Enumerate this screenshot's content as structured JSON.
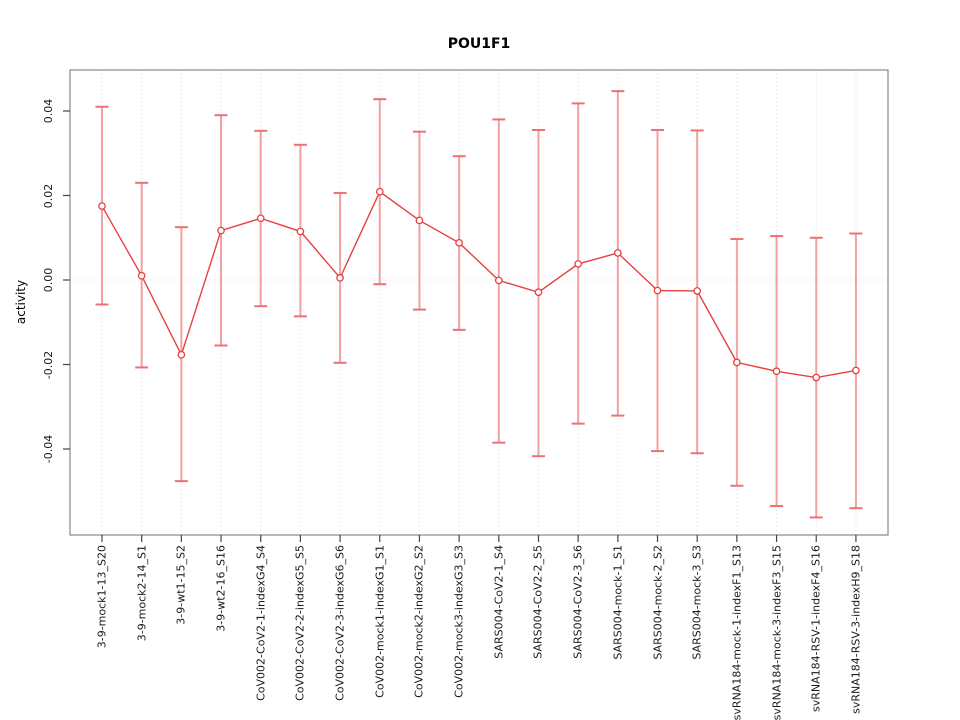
{
  "title": "POU1F1",
  "chart_data": {
    "type": "line",
    "subtype": "points-with-error-bars",
    "title": "POU1F1",
    "xlabel": "",
    "ylabel": "activity",
    "ylim": [
      -0.06,
      0.05
    ],
    "yticks": {
      "values": [
        0.04,
        0.02,
        0,
        -0.02,
        -0.04
      ],
      "labels": [
        "0.04",
        "0.02",
        "0.00",
        "-0.02",
        "-0.04"
      ]
    },
    "grid": {
      "vertical_dotted_at_each_category": true,
      "horizontal_dotted_at_zero": true
    },
    "legend_position": "none",
    "marker": "open-circle",
    "colors": {
      "series": "#e74040",
      "errorbar": "#f2a0a0",
      "errorbar_cap": "#ec7272",
      "grid": "#d9d9d9",
      "box": "#888888",
      "tick": "#444444",
      "text": "#1a1a1a"
    },
    "categories": [
      "3-9-mock1-13_S20",
      "3-9-mock2-14_S1",
      "3-9-wt1-15_S2",
      "3-9-wt2-16_S16",
      "CoV002-CoV2-1-indexG4_S4",
      "CoV002-CoV2-2-indexG5_S5",
      "CoV002-CoV2-3-indexG6_S6",
      "CoV002-mock1-indexG1_S1",
      "CoV002-mock2-indexG2_S2",
      "CoV002-mock3-indexG3_S3",
      "SARS004-CoV2-1_S4",
      "SARS004-CoV2-2_S5",
      "SARS004-CoV2-3_S6",
      "SARS004-mock-1_S1",
      "SARS004-mock-2_S2",
      "SARS004-mock-3_S3",
      "svRNA184-mock-1-indexF1_S13",
      "svRNA184-mock-3-indexF3_S15",
      "svRNA184-RSV-1-indexF4_S16",
      "svRNA184-RSV-3-indexH9_S18"
    ],
    "series": [
      {
        "name": "activity",
        "values": [
          0.0175,
          0.001,
          -0.0177,
          0.0117,
          0.0146,
          0.0115,
          0.0005,
          0.0209,
          0.0141,
          0.0088,
          -0.0001,
          -0.0029,
          0.0038,
          0.0064,
          -0.0025,
          -0.0026,
          -0.0195,
          -0.0216,
          -0.0231,
          -0.0214
        ],
        "upper": [
          0.041,
          0.023,
          0.0125,
          0.039,
          0.0353,
          0.032,
          0.0206,
          0.0428,
          0.0351,
          0.0293,
          0.038,
          0.0355,
          0.0418,
          0.0447,
          0.0355,
          0.0354,
          0.0097,
          0.0104,
          0.01,
          0.011
        ],
        "lower": [
          -0.0058,
          -0.0207,
          -0.0476,
          -0.0155,
          -0.0062,
          -0.0086,
          -0.0196,
          -0.001,
          -0.007,
          -0.0118,
          -0.0385,
          -0.0417,
          -0.034,
          -0.0321,
          -0.0405,
          -0.041,
          -0.0487,
          -0.0535,
          -0.0562,
          -0.054
        ]
      }
    ]
  }
}
